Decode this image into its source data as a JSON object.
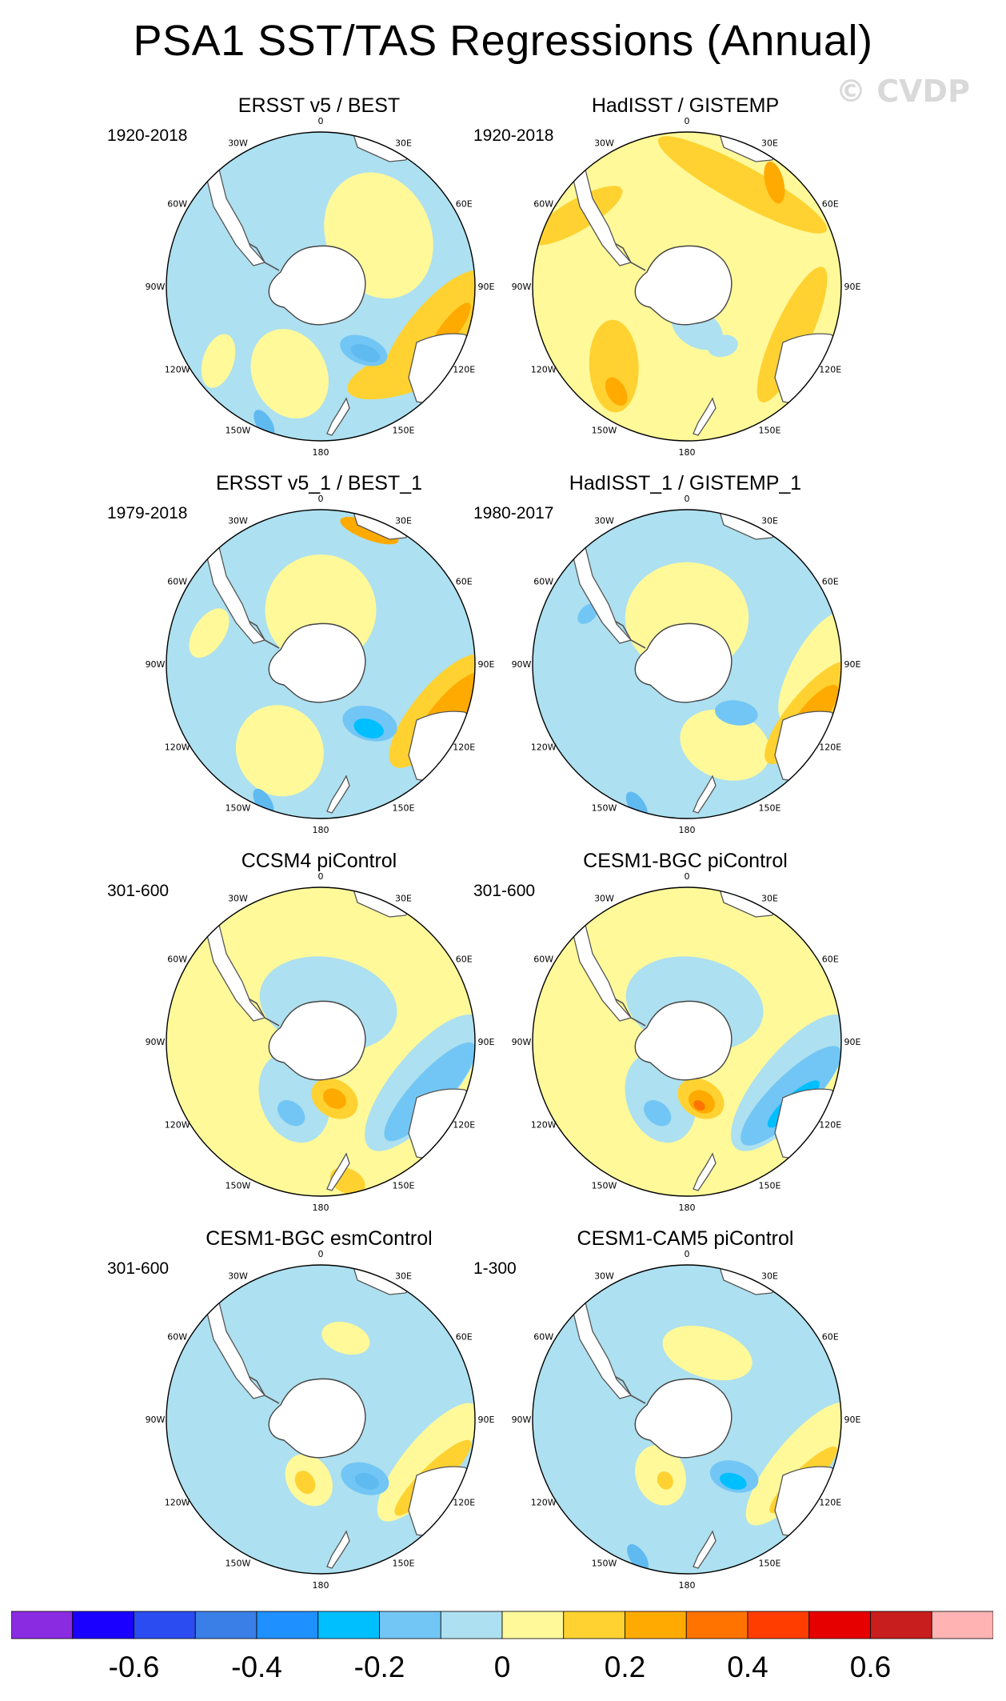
{
  "title": "PSA1 SST/TAS Regressions (Annual)",
  "watermark": "© CVDP",
  "panels": [
    {
      "title": "ERSST v5 / BEST",
      "period": "1920-2018",
      "field": {
        "bg": "#ade0f0",
        "blobs": [
          [
            "#fff99a",
            0.85,
            0.5,
            0.42,
            0.34,
            0.2
          ],
          [
            "#fff99a",
            -2.8,
            0.6,
            0.3,
            0.24,
            0.5
          ],
          [
            "#fff99a",
            -2.2,
            0.82,
            0.18,
            0.1,
            0.6
          ],
          [
            "#ffd232",
            1.95,
            0.8,
            0.5,
            0.18,
            0.2
          ],
          [
            "#ffd232",
            2.35,
            0.78,
            0.4,
            0.14,
            0.3
          ],
          [
            "#ffaa00",
            1.9,
            0.88,
            0.22,
            0.06,
            0.2
          ],
          [
            "#72c6f5",
            2.55,
            0.5,
            0.16,
            0.09,
            0.6
          ],
          [
            "#5fbaf0",
            2.55,
            0.52,
            0.1,
            0.05,
            0.6
          ],
          [
            "#5fbaf0",
            -2.75,
            0.96,
            0.1,
            0.05,
            0.4
          ]
        ]
      }
    },
    {
      "title": "HadISST / GISTEMP",
      "period": "1920-2018",
      "field": {
        "bg": "#fff99a",
        "blobs": [
          [
            "#ffd232",
            0.5,
            0.75,
            0.62,
            0.12,
            0.0
          ],
          [
            "#ffd232",
            2.0,
            0.75,
            0.48,
            0.12,
            0.0
          ],
          [
            "#ffd232",
            -1.0,
            0.85,
            0.34,
            0.1,
            0.3
          ],
          [
            "#ffd232",
            -2.4,
            0.7,
            0.3,
            0.16,
            0.5
          ],
          [
            "#ffaa00",
            0.7,
            0.88,
            0.14,
            0.06,
            0.4
          ],
          [
            "#ffaa00",
            -2.55,
            0.82,
            0.1,
            0.06,
            0.3
          ],
          [
            "#ade0f0",
            2.9,
            0.28,
            0.18,
            0.12,
            0.5
          ],
          [
            "#ade0f0",
            2.6,
            0.45,
            0.1,
            0.07,
            0.2
          ]
        ]
      }
    },
    {
      "title": "ERSST v5_1 / BEST_1",
      "period": "1979-2018",
      "field": {
        "bg": "#ade0f0",
        "blobs": [
          [
            "#fff99a",
            0.0,
            0.35,
            0.36,
            0.36,
            0.0
          ],
          [
            "#fff99a",
            -2.7,
            0.62,
            0.3,
            0.28,
            0.4
          ],
          [
            "#fff99a",
            -1.3,
            0.75,
            0.18,
            0.1,
            0.2
          ],
          [
            "#ffd232",
            1.95,
            0.82,
            0.46,
            0.16,
            0.2
          ],
          [
            "#ffaa00",
            1.95,
            0.88,
            0.34,
            0.1,
            0.2
          ],
          [
            "#ffaa00",
            0.35,
            0.92,
            0.2,
            0.06,
            0.0
          ],
          [
            "#72c6f5",
            2.45,
            0.5,
            0.18,
            0.11,
            0.6
          ],
          [
            "#00bfff",
            2.5,
            0.52,
            0.1,
            0.06,
            0.6
          ],
          [
            "#5fbaf0",
            -2.75,
            0.97,
            0.1,
            0.05,
            0.4
          ]
        ]
      }
    },
    {
      "title": "HadISST_1 / GISTEMP_1",
      "period": "1980-2017",
      "field": {
        "bg": "#ade0f0",
        "blobs": [
          [
            "#fff99a",
            0.0,
            0.3,
            0.4,
            0.36,
            0.0
          ],
          [
            "#fff99a",
            2.7,
            0.58,
            0.3,
            0.22,
            0.5
          ],
          [
            "#fff99a",
            1.6,
            0.82,
            0.4,
            0.14,
            0.3
          ],
          [
            "#ffd232",
            1.95,
            0.85,
            0.42,
            0.13,
            0.2
          ],
          [
            "#ffaa00",
            1.95,
            0.88,
            0.24,
            0.08,
            0.2
          ],
          [
            "#72c6f5",
            2.35,
            0.45,
            0.14,
            0.08,
            0.6
          ],
          [
            "#5fbaf0",
            -2.8,
            0.97,
            0.1,
            0.05,
            0.4
          ],
          [
            "#72c6f5",
            -1.1,
            0.72,
            0.08,
            0.05,
            0.2
          ]
        ]
      }
    },
    {
      "title": "CCSM4 piControl",
      "period": "301-600",
      "field": {
        "bg": "#fff99a",
        "blobs": [
          [
            "#ade0f0",
            1.95,
            0.72,
            0.55,
            0.2,
            0.2
          ],
          [
            "#72c6f5",
            2.0,
            0.78,
            0.42,
            0.12,
            0.2
          ],
          [
            "#ade0f0",
            -2.7,
            0.4,
            0.3,
            0.22,
            0.5
          ],
          [
            "#ade0f0",
            0.2,
            0.25,
            0.45,
            0.3,
            0.0
          ],
          [
            "#72c6f5",
            -2.75,
            0.5,
            0.1,
            0.07,
            0.2
          ],
          [
            "#ffd232",
            2.9,
            0.38,
            0.16,
            0.12,
            0.5
          ],
          [
            "#ffaa00",
            2.9,
            0.38,
            0.08,
            0.06,
            0.5
          ],
          [
            "#ffd232",
            2.95,
            0.92,
            0.12,
            0.08,
            0.4
          ]
        ]
      }
    },
    {
      "title": "CESM1-BGC piControl",
      "period": "301-600",
      "field": {
        "bg": "#fff99a",
        "blobs": [
          [
            "#ade0f0",
            1.95,
            0.72,
            0.55,
            0.2,
            0.2
          ],
          [
            "#72c6f5",
            2.05,
            0.76,
            0.44,
            0.13,
            0.2
          ],
          [
            "#00bfff",
            2.1,
            0.8,
            0.22,
            0.06,
            0.2
          ],
          [
            "#ade0f0",
            -2.7,
            0.4,
            0.3,
            0.22,
            0.5
          ],
          [
            "#ade0f0",
            0.2,
            0.25,
            0.45,
            0.3,
            0.0
          ],
          [
            "#72c6f5",
            -2.75,
            0.5,
            0.1,
            0.07,
            0.2
          ],
          [
            "#ffd232",
            2.9,
            0.38,
            0.16,
            0.12,
            0.5
          ],
          [
            "#ffaa00",
            2.9,
            0.4,
            0.09,
            0.07,
            0.5
          ],
          [
            "#ff7300",
            2.95,
            0.42,
            0.04,
            0.03,
            0.5
          ]
        ]
      }
    },
    {
      "title": "CESM1-BGC esmControl",
      "period": "301-600",
      "field": {
        "bg": "#ade0f0",
        "blobs": [
          [
            "#fff99a",
            1.95,
            0.75,
            0.48,
            0.16,
            0.2
          ],
          [
            "#ffd232",
            2.05,
            0.82,
            0.34,
            0.08,
            0.2
          ],
          [
            "#ffaa00",
            2.2,
            0.85,
            0.1,
            0.05,
            0.2
          ],
          [
            "#fff99a",
            -2.95,
            0.4,
            0.18,
            0.14,
            0.5
          ],
          [
            "#ffd232",
            -2.9,
            0.42,
            0.08,
            0.06,
            0.5
          ],
          [
            "#72c6f5",
            2.5,
            0.48,
            0.16,
            0.1,
            0.6
          ],
          [
            "#5fbaf0",
            2.5,
            0.5,
            0.08,
            0.05,
            0.6
          ],
          [
            "#fff99a",
            0.3,
            0.55,
            0.16,
            0.1,
            0.0
          ]
        ]
      }
    },
    {
      "title": "CESM1-CAM5 piControl",
      "period": "1-300",
      "field": {
        "bg": "#ade0f0",
        "blobs": [
          [
            "#fff99a",
            1.95,
            0.78,
            0.5,
            0.16,
            0.2
          ],
          [
            "#ffd232",
            2.05,
            0.85,
            0.3,
            0.07,
            0.2
          ],
          [
            "#fff99a",
            -2.7,
            0.4,
            0.2,
            0.16,
            0.5
          ],
          [
            "#ffd232",
            -2.8,
            0.42,
            0.06,
            0.05,
            0.5
          ],
          [
            "#fff99a",
            0.3,
            0.45,
            0.3,
            0.16,
            0.0
          ],
          [
            "#72c6f5",
            2.45,
            0.48,
            0.16,
            0.1,
            0.6
          ],
          [
            "#00bfff",
            2.5,
            0.5,
            0.09,
            0.05,
            0.6
          ],
          [
            "#5fbaf0",
            -2.8,
            0.95,
            0.1,
            0.05,
            0.4
          ]
        ]
      }
    }
  ],
  "lon_labels": [
    "0",
    "30E",
    "60E",
    "90E",
    "120E",
    "150E",
    "180",
    "150W",
    "120W",
    "90W",
    "60W",
    "30W"
  ],
  "chart_data": {
    "type": "heatmap",
    "title": "PSA1 SST/TAS Regressions (Annual)",
    "projection": "south polar stereographic",
    "colorbar": {
      "colors": [
        "#8a2be2",
        "#1a00ff",
        "#2b4cf0",
        "#3a7fe8",
        "#1e90ff",
        "#00bfff",
        "#72c6f5",
        "#ade0f0",
        "#fff99a",
        "#ffd232",
        "#ffaa00",
        "#ff7300",
        "#ff3d00",
        "#e60000",
        "#c81e1e",
        "#ffb3b3"
      ],
      "bounds": [
        -0.7,
        -0.6,
        -0.5,
        -0.4,
        -0.3,
        -0.2,
        -0.1,
        0,
        0.1,
        0.2,
        0.3,
        0.4,
        0.5,
        0.6,
        0.7
      ],
      "tick_labels": [
        "-0.6",
        "-0.4",
        "-0.2",
        "0",
        "0.2",
        "0.4",
        "0.6"
      ],
      "tick_values": [
        -0.6,
        -0.4,
        -0.2,
        0,
        0.2,
        0.4,
        0.6
      ]
    }
  }
}
